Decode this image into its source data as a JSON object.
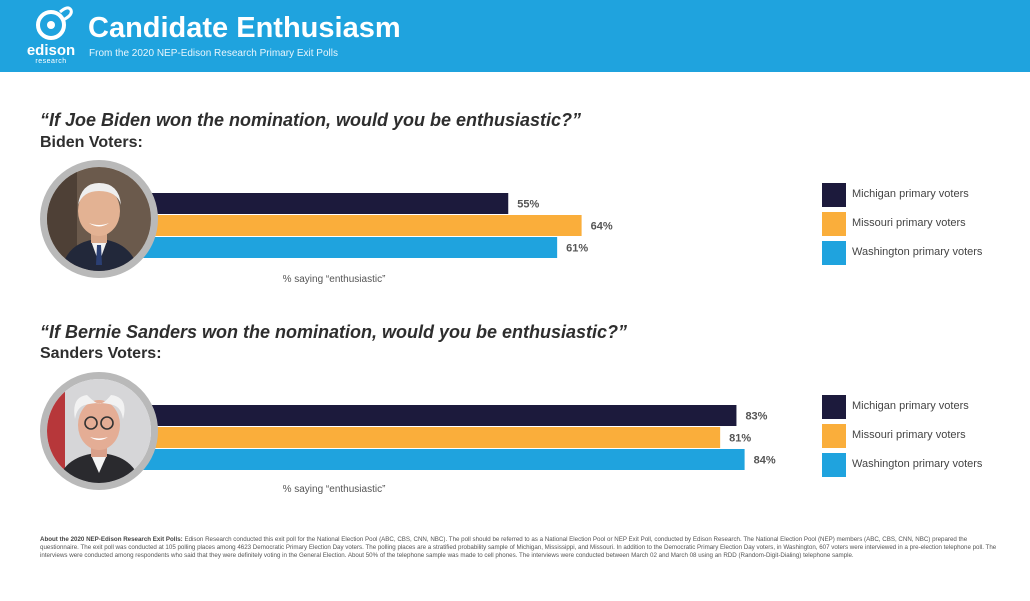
{
  "header": {
    "logo_word": "edison",
    "logo_sub": "research",
    "title": "Candidate Enthusiasm",
    "subtitle": "From the 2020 NEP-Edison Research Primary Exit Polls"
  },
  "colors": {
    "header_bg": "#1fa3de",
    "michigan": "#1c1a3c",
    "missouri": "#faae3b",
    "washington": "#1fa3de"
  },
  "chart_data": [
    {
      "type": "bar",
      "orientation": "horizontal",
      "title": "“If Joe Biden won the nomination, would you be enthusiastic?”",
      "subtitle": "Biden Voters:",
      "xlabel": "% saying “enthusiastic”",
      "categories": [
        "Michigan primary voters",
        "Missouri primary voters",
        "Washington primary voters"
      ],
      "values": [
        55,
        64,
        61
      ],
      "value_labels": [
        "55%",
        "64%",
        "61%"
      ],
      "xlim": [
        0,
        100
      ],
      "legend": "right"
    },
    {
      "type": "bar",
      "orientation": "horizontal",
      "title": "“If Bernie Sanders won the nomination, would you be enthusiastic?”",
      "subtitle": "Sanders Voters:",
      "xlabel": "% saying “enthusiastic”",
      "categories": [
        "Michigan primary voters",
        "Missouri primary voters",
        "Washington primary voters"
      ],
      "values": [
        83,
        81,
        84
      ],
      "value_labels": [
        "83%",
        "81%",
        "84%"
      ],
      "xlim": [
        0,
        100
      ],
      "legend": "right"
    }
  ],
  "footnote": {
    "heading": "About the 2020 NEP-Edison Research Exit Polls:",
    "text": "Edison Research conducted this exit poll for the National Election Pool (ABC, CBS, CNN, NBC). The poll should be referred to as a National Election Pool or NEP Exit Poll, conducted by Edison Research. The National Election Pool (NEP) members (ABC, CBS, CNN, NBC) prepared the questionnaire. The exit poll was conducted at 105 polling places among 4623 Democratic Primary Election Day voters. The polling places are a stratified probability sample of Michigan, Mississippi, and Missouri. In addition to the Democratic Primary Election Day voters, in Washington, 607 voters were interviewed in a pre-election telephone poll. The interviews were conducted among respondents who said that they were definitely voting in the General Election. About 50% of the telephone sample was made to cell phones. The interviews were conducted between March 02 and March 08 using an RDD (Random-Digit-Dialing) telephone sample."
  }
}
